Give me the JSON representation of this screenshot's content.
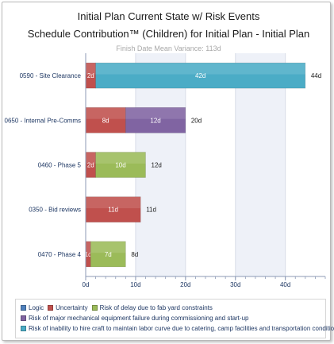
{
  "header": {
    "title": "Initial  Plan Current State w/ Risk Events",
    "subtitle": "Schedule Contribution™ (Children) for Initial  Plan - Initial  Plan",
    "note": "Finish Date Mean Variance: 113d"
  },
  "colors": {
    "logic": "#4f81bd",
    "uncertainty": "#c0504d",
    "fab_yard": "#9bbb59",
    "mech_failure": "#8064a2",
    "labor_curve": "#4bacc6"
  },
  "chart_data": {
    "type": "bar",
    "orientation": "horizontal",
    "stacked": true,
    "categories": [
      "0590 - Site Clearance",
      "0650 - Internal Pre-Comms",
      "0460 - Phase 5",
      "0350 - Bid reviews",
      "0470 - Phase 4"
    ],
    "series": [
      {
        "name": "Logic",
        "color": "#4f81bd",
        "values": [
          0,
          0,
          0,
          0,
          0
        ]
      },
      {
        "name": "Uncertainty",
        "color": "#c0504d",
        "values": [
          2,
          8,
          2,
          11,
          1
        ]
      },
      {
        "name": "Risk of delay due to fab yard constraints",
        "color": "#9bbb59",
        "values": [
          0,
          0,
          10,
          0,
          7
        ]
      },
      {
        "name": "Risk of major mechanical equipment failure during commissioning and start-up",
        "color": "#8064a2",
        "values": [
          0,
          12,
          0,
          0,
          0
        ]
      },
      {
        "name": "Risk of inability to hire craft to maintain labor curve due to catering, camp facilities and transportation conditions",
        "color": "#4bacc6",
        "values": [
          42,
          0,
          0,
          0,
          0
        ]
      }
    ],
    "segment_labels": [
      [
        "2d",
        "42d"
      ],
      [
        "8d",
        "12d"
      ],
      [
        "2d",
        "10d"
      ],
      [
        "11d"
      ],
      [
        "1d",
        "7d"
      ]
    ],
    "totals": [
      "44d",
      "20d",
      "12d",
      "11d",
      "8d"
    ],
    "total_values": [
      44,
      20,
      12,
      11,
      8
    ],
    "xlim": [
      0,
      48
    ],
    "xticks": [
      0,
      10,
      20,
      30,
      40
    ],
    "xtick_labels": [
      "0d",
      "10d",
      "20d",
      "30d",
      "40d"
    ],
    "grid": true,
    "legend_position": "bottom"
  },
  "legend": {
    "rows": [
      [
        {
          "label": "Logic",
          "color": "#4f81bd"
        },
        {
          "label": "Uncertainty",
          "color": "#c0504d"
        },
        {
          "label": "Risk of delay due to fab yard constraints",
          "color": "#9bbb59"
        }
      ],
      [
        {
          "label": "Risk of major mechanical equipment failure during commissioning and start-up",
          "color": "#8064a2"
        }
      ],
      [
        {
          "label": "Risk of inability to hire craft to maintain labor curve due to catering, camp facilities and transportation conditions",
          "color": "#4bacc6"
        }
      ]
    ]
  }
}
